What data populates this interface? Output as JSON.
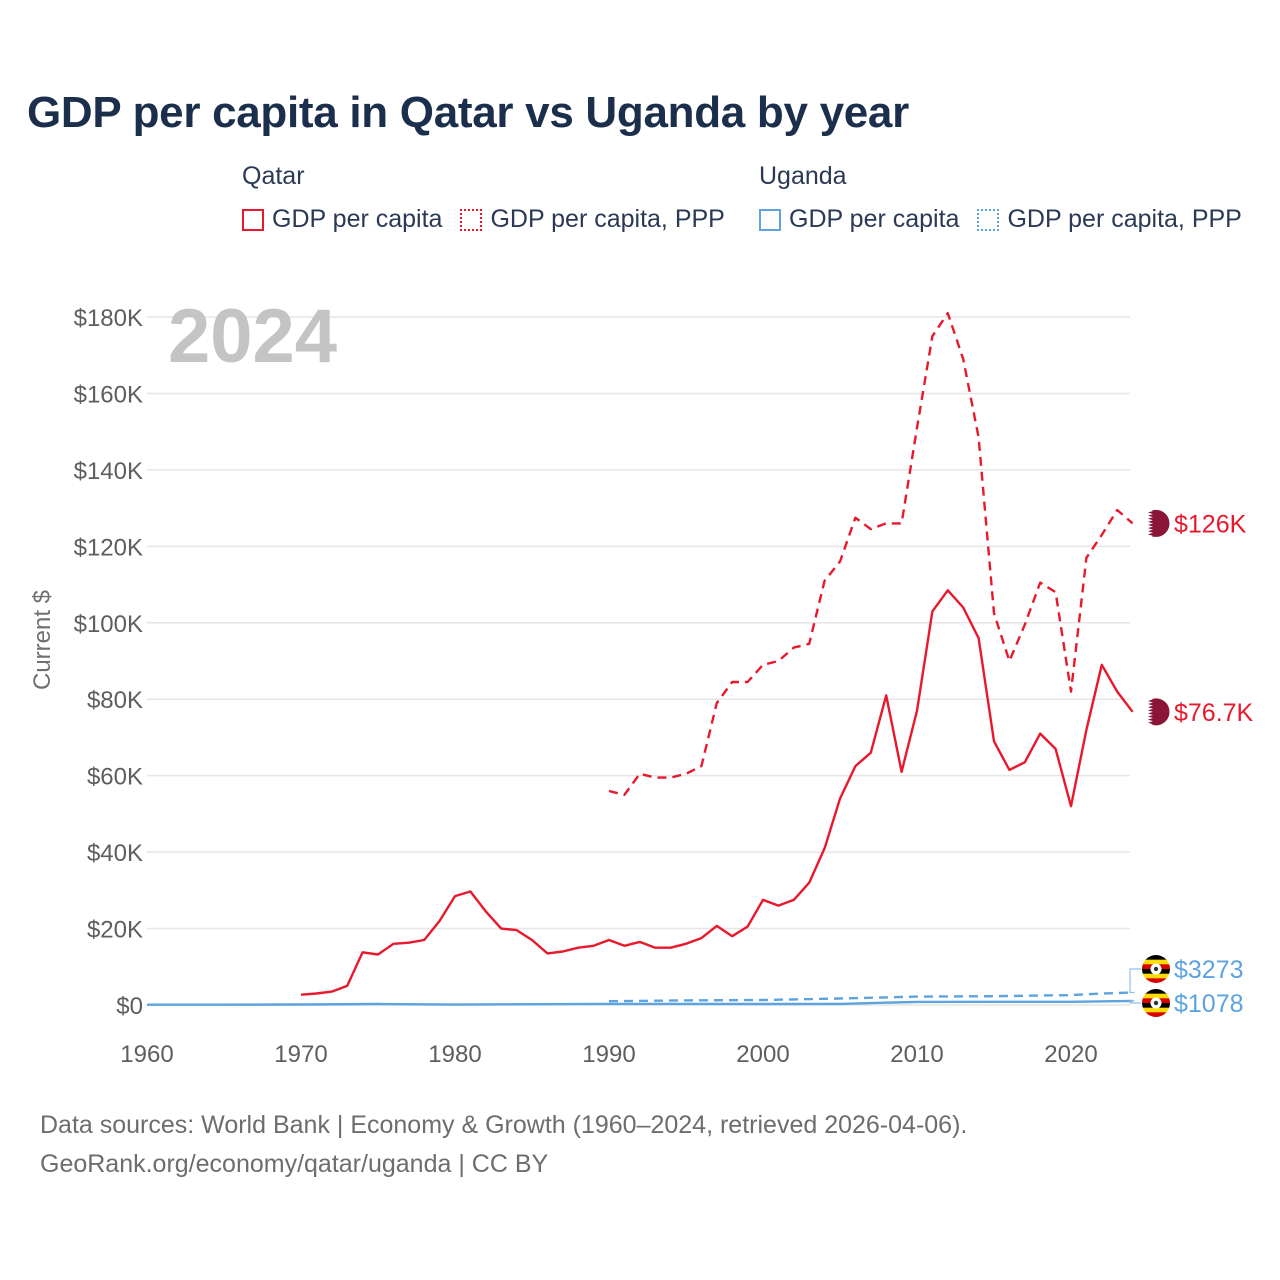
{
  "title": "GDP per capita in Qatar vs Uganda by year",
  "legend": {
    "qatar": {
      "country": "Qatar",
      "items": [
        "GDP per capita",
        "GDP per capita, PPP"
      ]
    },
    "uganda": {
      "country": "Uganda",
      "items": [
        "GDP per capita",
        "GDP per capita, PPP"
      ]
    }
  },
  "footer": {
    "line1": "Data sources: World Bank | Economy & Growth (1960–2024, retrieved 2026-04-06).",
    "line2": "GeoRank.org/economy/qatar/uganda | CC BY"
  },
  "colors": {
    "qatar": "#e8192c",
    "uganda": "#5ca3e0",
    "grid": "#e6e6e6",
    "flag_qatar": "#8a1538"
  },
  "chart_data": {
    "type": "line",
    "year_label": "2024",
    "ylabel": "Current $",
    "xlim": [
      1960,
      2025
    ],
    "ylim": [
      0,
      180000
    ],
    "xticks": [
      1960,
      1970,
      1980,
      1990,
      2000,
      2010,
      2020
    ],
    "yticks": [
      0,
      20000,
      40000,
      60000,
      80000,
      100000,
      120000,
      140000,
      160000,
      180000
    ],
    "ytick_labels": [
      "$0",
      "$20K",
      "$40K",
      "$60K",
      "$80K",
      "$100K",
      "$120K",
      "$140K",
      "$160K",
      "$180K"
    ],
    "series": [
      {
        "name": "Qatar GDP per capita",
        "country": "Qatar",
        "style": "solid",
        "color": "#e8192c",
        "end_label": "$76.7K",
        "x": [
          1970,
          1971,
          1972,
          1973,
          1974,
          1975,
          1976,
          1977,
          1978,
          1979,
          1980,
          1981,
          1982,
          1983,
          1984,
          1985,
          1986,
          1987,
          1988,
          1989,
          1990,
          1991,
          1992,
          1993,
          1994,
          1995,
          1996,
          1997,
          1998,
          1999,
          2000,
          2001,
          2002,
          2003,
          2004,
          2005,
          2006,
          2007,
          2008,
          2009,
          2010,
          2011,
          2012,
          2013,
          2014,
          2015,
          2016,
          2017,
          2018,
          2019,
          2020,
          2021,
          2022,
          2023,
          2024
        ],
        "y": [
          2700,
          3000,
          3500,
          5000,
          13800,
          13200,
          16000,
          16300,
          17000,
          22000,
          28500,
          29700,
          24500,
          20000,
          19600,
          17000,
          13500,
          14000,
          15000,
          15500,
          17000,
          15500,
          16500,
          15000,
          15000,
          16000,
          17500,
          20700,
          18000,
          20500,
          27500,
          26000,
          27500,
          32000,
          41000,
          54000,
          62500,
          66000,
          81000,
          61000,
          77000,
          103000,
          108500,
          104000,
          96000,
          69000,
          61500,
          63500,
          71000,
          67000,
          52000,
          72000,
          89000,
          82000,
          76700
        ]
      },
      {
        "name": "Qatar GDP per capita, PPP",
        "country": "Qatar",
        "style": "dashed",
        "color": "#e8192c",
        "end_label": "$126K",
        "x": [
          1990,
          1991,
          1992,
          1993,
          1994,
          1995,
          1996,
          1997,
          1998,
          1999,
          2000,
          2001,
          2002,
          2003,
          2004,
          2005,
          2006,
          2007,
          2008,
          2009,
          2010,
          2011,
          2012,
          2013,
          2014,
          2015,
          2016,
          2017,
          2018,
          2019,
          2020,
          2021,
          2022,
          2023,
          2024
        ],
        "y": [
          56000,
          55000,
          60500,
          59500,
          59500,
          60500,
          62500,
          79000,
          84500,
          84500,
          89000,
          90000,
          93500,
          94500,
          111000,
          116000,
          127500,
          124500,
          126000,
          126000,
          151000,
          175000,
          181000,
          169000,
          148500,
          102500,
          90000,
          99500,
          110500,
          108000,
          82000,
          117000,
          123000,
          129500,
          126000
        ]
      },
      {
        "name": "Uganda GDP per capita",
        "country": "Uganda",
        "style": "solid",
        "color": "#5ca3e0",
        "end_label": "$1078",
        "x": [
          1960,
          1965,
          1970,
          1975,
          1980,
          1985,
          1990,
          1995,
          2000,
          2005,
          2010,
          2015,
          2020,
          2024
        ],
        "y": [
          70,
          90,
          130,
          250,
          100,
          200,
          300,
          300,
          250,
          300,
          800,
          850,
          850,
          1078
        ]
      },
      {
        "name": "Uganda GDP per capita, PPP",
        "country": "Uganda",
        "style": "dashed",
        "color": "#5ca3e0",
        "end_label": "$3273",
        "x": [
          1990,
          1995,
          2000,
          2005,
          2008,
          2010,
          2015,
          2020,
          2022,
          2024
        ],
        "y": [
          1000,
          1200,
          1300,
          1700,
          2000,
          2200,
          2300,
          2600,
          3000,
          3273
        ]
      }
    ]
  }
}
